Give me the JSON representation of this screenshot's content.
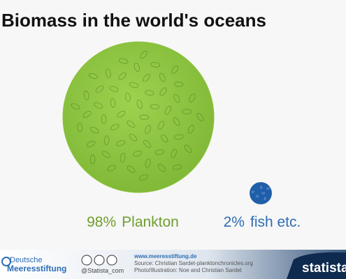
{
  "chart_data": {
    "type": "circles",
    "title": "Biomass in the world's oceans",
    "categories": [
      "Plankton",
      "fish etc."
    ],
    "values": [
      98,
      2
    ],
    "value_labels": [
      "98%",
      "2%"
    ],
    "colors": [
      "#8cc43c",
      "#1f5ea8"
    ],
    "label_colors": [
      "#6f9e2c",
      "#2e6db4"
    ]
  },
  "footer": {
    "org_top": "Deutsche",
    "org_bottom": "Meeresstiftung",
    "handle": "@Statista_com",
    "url": "www.meeresstiftung.de",
    "source": "Source: Christian Sardet-planktonchronicles.org",
    "credit": "Photo/Illustration: Noe and Christian Sardet",
    "brand": "statista"
  }
}
